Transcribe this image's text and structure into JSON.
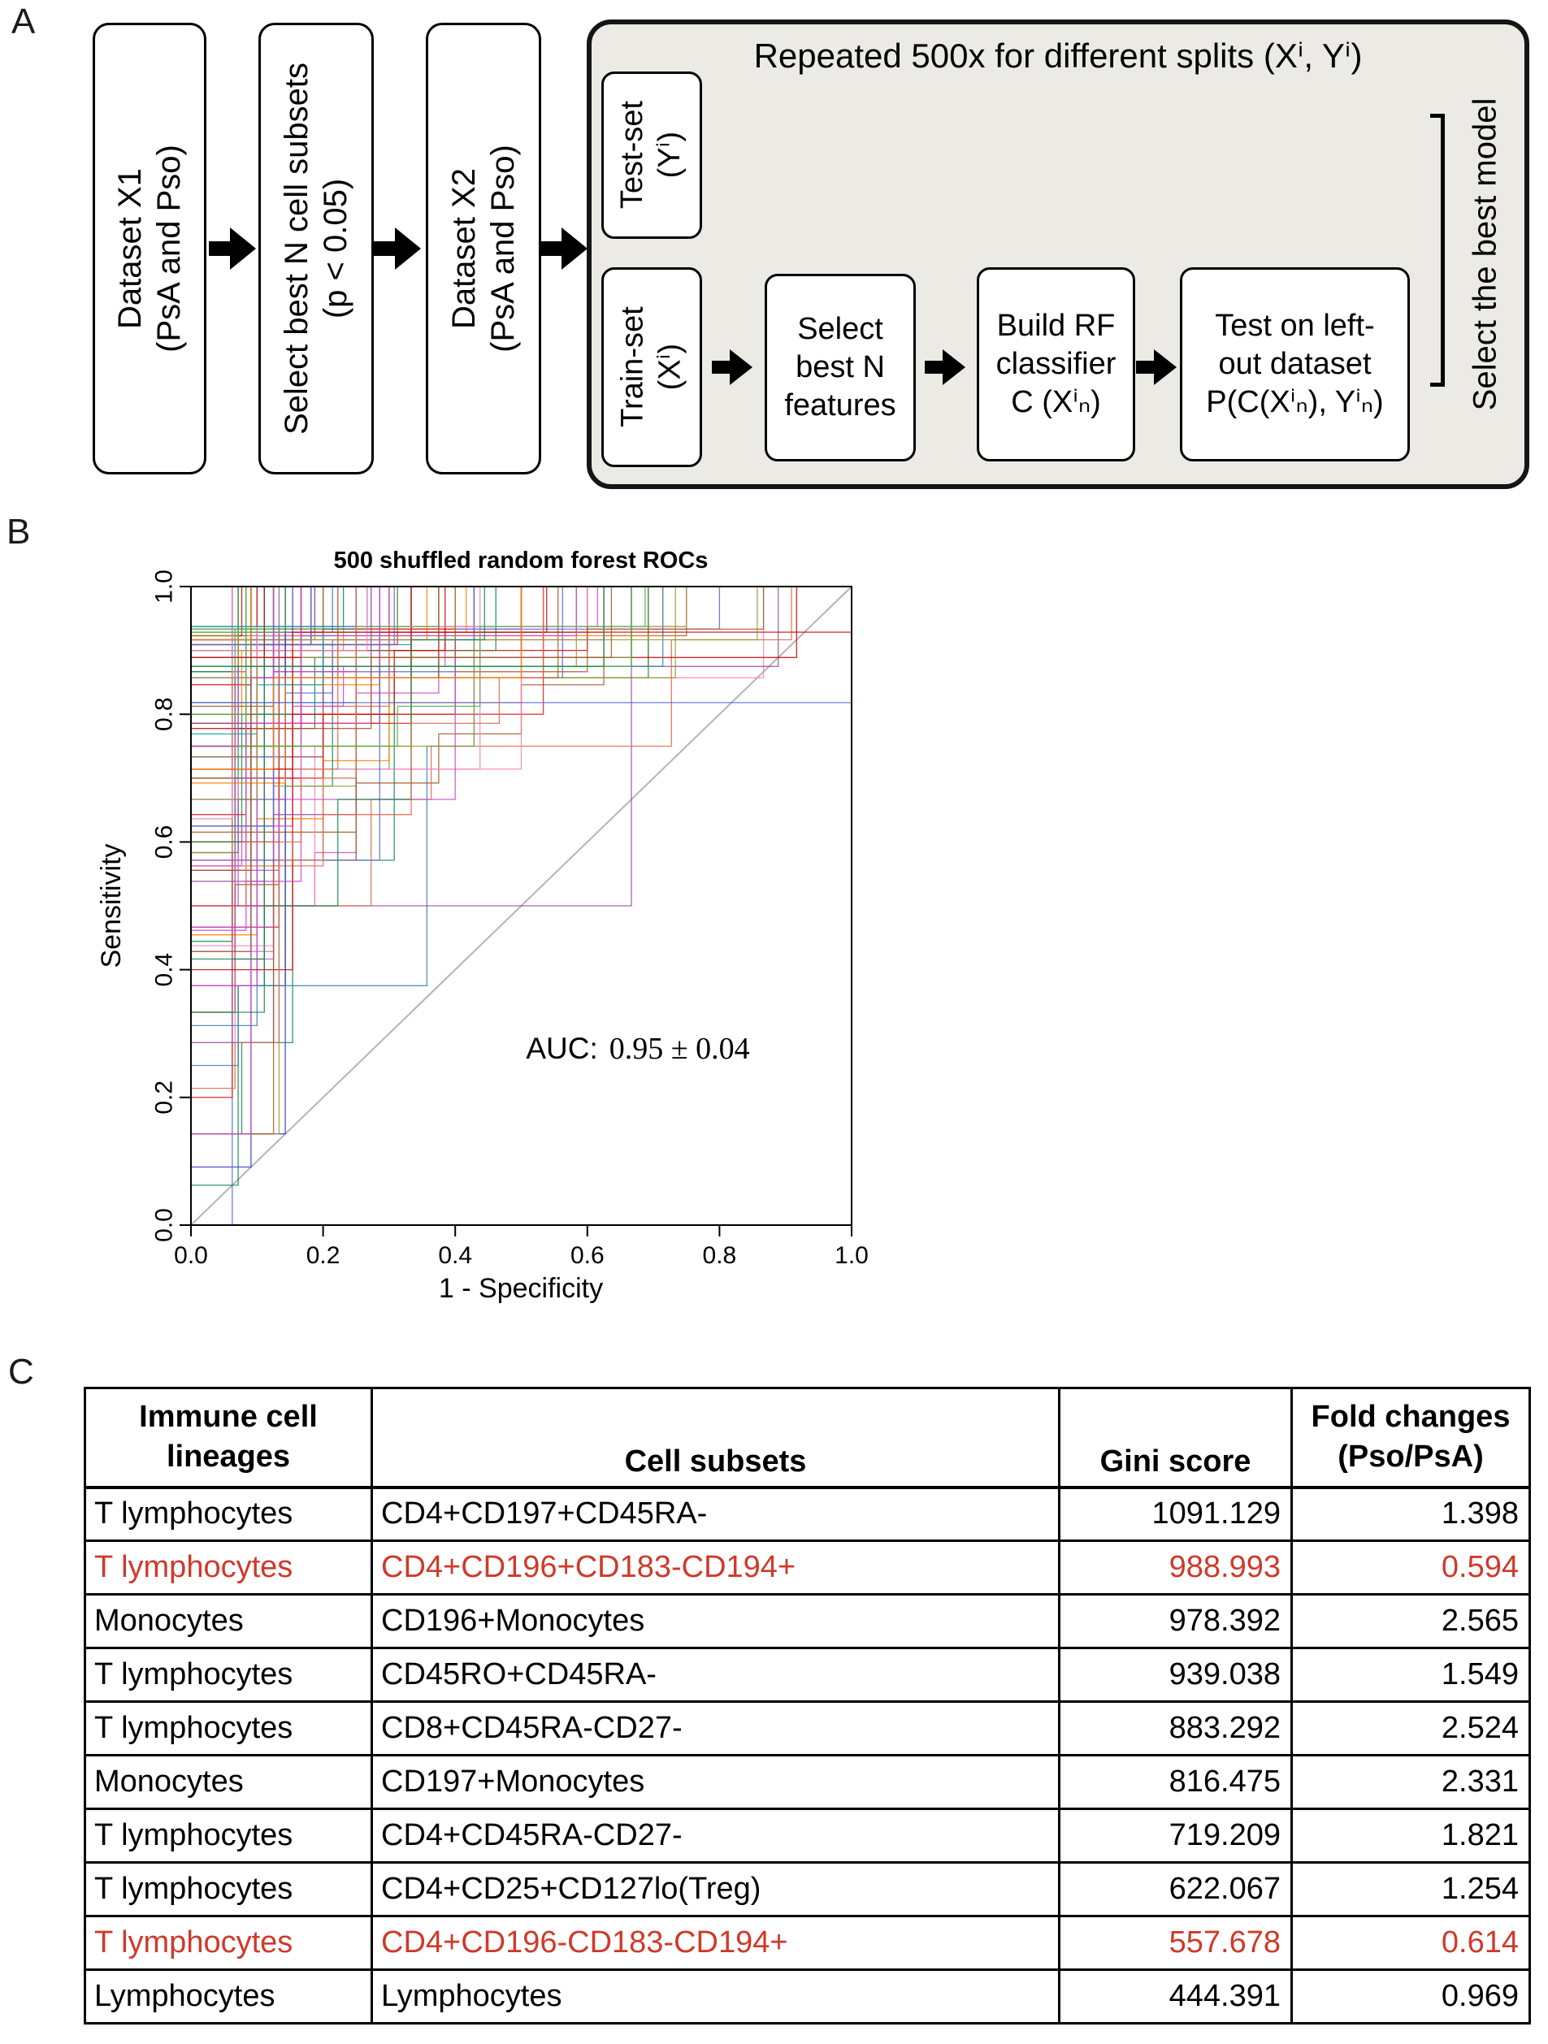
{
  "panel_a": {
    "label": "A",
    "pipeline_bg_color": "#eceae4",
    "flow_boxes": {
      "dataset_x1": {
        "line1": "Dataset X1",
        "line2": "(PsA and Pso)"
      },
      "select_subsets": {
        "line1": "Select best N cell subsets",
        "line2": "(p < 0.05)"
      },
      "dataset_x2": {
        "line1": "Dataset X2",
        "line2": "(PsA and Pso)"
      }
    },
    "pipeline": {
      "title": "Repeated 500x for different splits (Xⁱ, Yⁱ)",
      "test_set": {
        "line1": "Test-set",
        "line2": "(Yⁱ)"
      },
      "train_set": {
        "line1": "Train-set",
        "line2": "(Xⁱ)"
      },
      "select_features": {
        "line1": "Select",
        "line2": "best N",
        "line3": "features"
      },
      "build_classifier": {
        "line1": "Build RF",
        "line2": "classifier",
        "line3": "C (Xⁱₙ)"
      },
      "test_left_out": {
        "line1": "Test on left-",
        "line2": "out dataset",
        "line3": "P(C(Xⁱₙ), Yⁱₙ)"
      },
      "bracket_label": "Select the best model"
    }
  },
  "panel_b": {
    "label": "B"
  },
  "chart_data": {
    "type": "line",
    "title": "500 shuffled random forest ROCs",
    "xlabel": "1 - Specificity",
    "ylabel": "Sensitivity",
    "xlim": [
      0,
      1
    ],
    "ylim": [
      0,
      1
    ],
    "xticks": [
      "0.0",
      "0.2",
      "0.4",
      "0.6",
      "0.8",
      "1.0"
    ],
    "yticks": [
      "0.0",
      "0.2",
      "0.4",
      "0.6",
      "0.8",
      "1.0"
    ],
    "annotation_prefix": "AUC:",
    "annotation_value": "0.95 ± 0.04",
    "n_curves": 500,
    "auc_mean": 0.95,
    "auc_sd": 0.04,
    "diagonal": true,
    "diagonal_color": "#b4b4b4",
    "grid": false,
    "legend": "none",
    "curve_palette": [
      "#e41a1c",
      "#377eb8",
      "#4daf4a",
      "#984ea3",
      "#ff7f00",
      "#a65628",
      "#f781bf",
      "#00a0a8",
      "#cc0000",
      "#3333cc",
      "#118844",
      "#cc44cc",
      "#999933",
      "#dd6644",
      "#5566dd",
      "#b22222"
    ],
    "note": "500 overlaid ROC step curves from repeated random-forest splits hugging the top-left corner; individual curve vertices are not readable from the figure and are regenerated procedurally to match the stated AUC of 0.95 ± 0.04."
  },
  "panel_c": {
    "label": "C",
    "table": {
      "highlight_color": "#cf3a2a",
      "headers": {
        "lineages": {
          "line1": "Immune cell",
          "line2": "lineages"
        },
        "subsets": "Cell subsets",
        "gini": "Gini score",
        "fold": {
          "line1": "Fold changes",
          "line2": "(Pso/PsA)"
        }
      },
      "rows": [
        {
          "lineage": "T lymphocytes",
          "subset": "CD4+CD197+CD45RA-",
          "gini": "1091.129",
          "fold": "1.398",
          "highlight": false
        },
        {
          "lineage": "T lymphocytes",
          "subset": "CD4+CD196+CD183-CD194+",
          "gini": "988.993",
          "fold": "0.594",
          "highlight": true
        },
        {
          "lineage": "Monocytes",
          "subset": "CD196+Monocytes",
          "gini": "978.392",
          "fold": "2.565",
          "highlight": false
        },
        {
          "lineage": "T lymphocytes",
          "subset": "CD45RO+CD45RA-",
          "gini": "939.038",
          "fold": "1.549",
          "highlight": false
        },
        {
          "lineage": "T lymphocytes",
          "subset": "CD8+CD45RA-CD27-",
          "gini": "883.292",
          "fold": "2.524",
          "highlight": false
        },
        {
          "lineage": "Monocytes",
          "subset": "CD197+Monocytes",
          "gini": "816.475",
          "fold": "2.331",
          "highlight": false
        },
        {
          "lineage": "T lymphocytes",
          "subset": "CD4+CD45RA-CD27-",
          "gini": "719.209",
          "fold": "1.821",
          "highlight": false
        },
        {
          "lineage": "T lymphocytes",
          "subset": "CD4+CD25+CD127lo(Treg)",
          "gini": "622.067",
          "fold": "1.254",
          "highlight": false
        },
        {
          "lineage": "T lymphocytes",
          "subset": "CD4+CD196-CD183-CD194+",
          "gini": "557.678",
          "fold": "0.614",
          "highlight": true
        },
        {
          "lineage": "Lymphocytes",
          "subset": "Lymphocytes",
          "gini": "444.391",
          "fold": "0.969",
          "highlight": false
        }
      ]
    }
  }
}
